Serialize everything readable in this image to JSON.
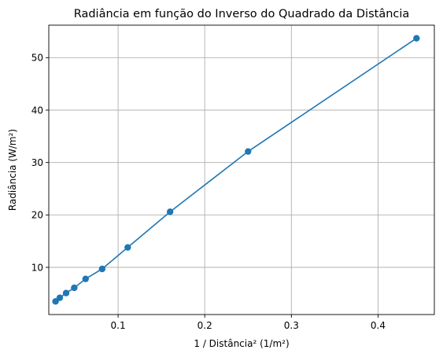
{
  "chart_data": {
    "type": "line",
    "title": "Radiância em função do Inverso do Quadrado da Distância",
    "xlabel": "1 / Distância² (1/m²)",
    "ylabel": "Radiância (W/m²)",
    "xlim": [
      0.02,
      0.465
    ],
    "ylim": [
      1.0,
      56.2
    ],
    "x_ticks": [
      {
        "value": 0.1,
        "label": "0.1"
      },
      {
        "value": 0.2,
        "label": "0.2"
      },
      {
        "value": 0.3,
        "label": "0.3"
      },
      {
        "value": 0.4,
        "label": "0.4"
      }
    ],
    "y_ticks": [
      {
        "value": 10,
        "label": "10"
      },
      {
        "value": 20,
        "label": "20"
      },
      {
        "value": 30,
        "label": "30"
      },
      {
        "value": 40,
        "label": "40"
      },
      {
        "value": 50,
        "label": "50"
      }
    ],
    "grid": true,
    "markers": "circle",
    "color": "#1f77b4",
    "series": [
      {
        "x": [
          0.0278,
          0.0327,
          0.04,
          0.0494,
          0.0625,
          0.0816,
          0.1111,
          0.16,
          0.25,
          0.4444
        ],
        "y": [
          3.5,
          4.2,
          5.1,
          6.1,
          7.8,
          9.7,
          13.8,
          20.6,
          32.1,
          53.7
        ]
      }
    ]
  }
}
